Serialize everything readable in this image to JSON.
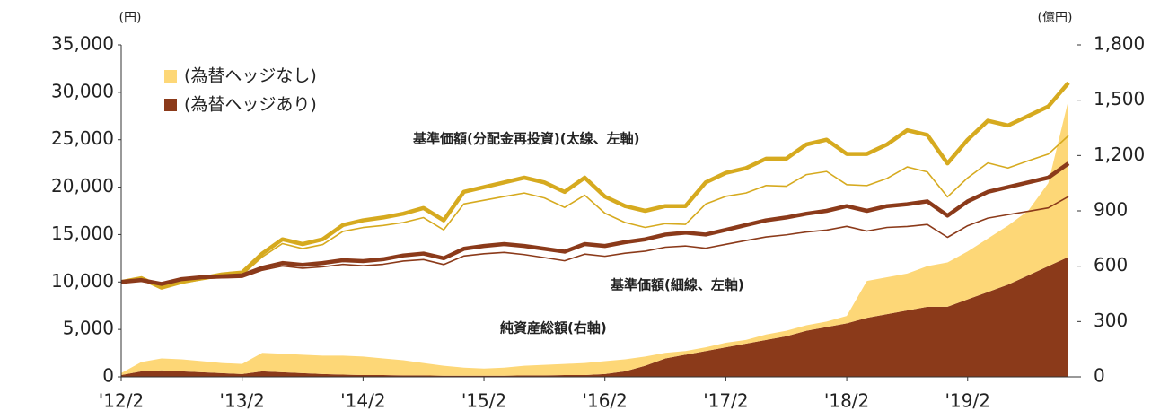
{
  "chart_data": {
    "type": "line-area",
    "y_unit": "(円)",
    "y2_unit": "(億円)",
    "annotations": [
      "基準価額(分配金再投資)(太線、左軸)",
      "基準価額(細線、左軸)",
      "純資産総額(右軸)"
    ],
    "x": [
      "2012-02",
      "2012-04",
      "2012-06",
      "2012-08",
      "2012-10",
      "2012-12",
      "2013-02",
      "2013-04",
      "2013-06",
      "2013-08",
      "2013-10",
      "2013-12",
      "2014-02",
      "2014-04",
      "2014-06",
      "2014-08",
      "2014-10",
      "2014-12",
      "2015-02",
      "2015-04",
      "2015-06",
      "2015-08",
      "2015-10",
      "2015-12",
      "2016-02",
      "2016-04",
      "2016-06",
      "2016-08",
      "2016-10",
      "2016-12",
      "2017-02",
      "2017-04",
      "2017-06",
      "2017-08",
      "2017-10",
      "2017-12",
      "2018-02",
      "2018-04",
      "2018-06",
      "2018-08",
      "2018-10",
      "2018-12",
      "2019-02",
      "2019-04",
      "2019-06",
      "2019-08",
      "2019-10",
      "2019-12"
    ],
    "xlim": [
      "2012-02",
      "2019-12"
    ],
    "xticks": [
      {
        "value": "2012-02",
        "label": "'12/2"
      },
      {
        "value": "2013-02",
        "label": "'13/2"
      },
      {
        "value": "2014-02",
        "label": "'14/2"
      },
      {
        "value": "2015-02",
        "label": "'15/2"
      },
      {
        "value": "2016-02",
        "label": "'16/2"
      },
      {
        "value": "2017-02",
        "label": "'17/2"
      },
      {
        "value": "2018-02",
        "label": "'18/2"
      },
      {
        "value": "2019-02",
        "label": "'19/2"
      }
    ],
    "ylim": [
      0,
      35000
    ],
    "yticks": [
      0,
      {
        "value": 5000,
        "label": "5,000"
      },
      {
        "value": 10000,
        "label": "10,000"
      },
      {
        "value": 15000,
        "label": "15,000"
      },
      {
        "value": 20000,
        "label": "20,000"
      },
      {
        "value": 25000,
        "label": "25,000"
      },
      {
        "value": 30000,
        "label": "30,000"
      },
      {
        "value": 35000,
        "label": "35,000"
      }
    ],
    "y2lim": [
      0,
      1800
    ],
    "y2ticks": [
      0,
      300,
      600,
      900,
      {
        "value": 1200,
        "label": "1,200"
      },
      {
        "value": 1500,
        "label": "1,500"
      },
      {
        "value": 1800,
        "label": "1,800"
      }
    ],
    "areas": [
      {
        "name": "(為替ヘッジあり)",
        "color": "#8b3a1a",
        "axis": "y2",
        "values": [
          10,
          30,
          35,
          30,
          25,
          20,
          15,
          30,
          25,
          20,
          15,
          12,
          10,
          10,
          8,
          8,
          6,
          6,
          6,
          6,
          8,
          8,
          10,
          10,
          15,
          30,
          60,
          100,
          120,
          140,
          160,
          180,
          200,
          220,
          250,
          270,
          290,
          320,
          340,
          360,
          380,
          380,
          420,
          460,
          500,
          550,
          600,
          650
        ]
      },
      {
        "name": "(為替ヘッジなし)",
        "color": "#fdd777",
        "axis": "y2",
        "values": [
          10,
          50,
          65,
          65,
          60,
          55,
          55,
          100,
          100,
          100,
          100,
          103,
          100,
          90,
          82,
          67,
          54,
          44,
          39,
          44,
          52,
          57,
          60,
          65,
          70,
          65,
          50,
          30,
          20,
          20,
          25,
          20,
          30,
          30,
          30,
          30,
          40,
          200,
          200,
          200,
          220,
          240,
          260,
          290,
          320,
          350,
          450,
          850
        ]
      }
    ],
    "series": [
      {
        "color": "#d6aa1f",
        "width": 1.6,
        "values": [
          10000,
          10360,
          9330,
          9890,
          10240,
          10590,
          10750,
          12650,
          14050,
          13520,
          13950,
          15330,
          15740,
          15960,
          16270,
          16790,
          15490,
          18230,
          18620,
          19010,
          19380,
          18860,
          17860,
          19150,
          17250,
          16270,
          15750,
          16150,
          16070,
          18220,
          19030,
          19380,
          20170,
          20100,
          21320,
          21650,
          20260,
          20160,
          20920,
          22130,
          21600,
          18970,
          20980,
          22550,
          22020,
          22770,
          23480,
          25420
        ]
      },
      {
        "color": "#8b3a1a",
        "width": 1.6,
        "values": [
          10000,
          10170,
          9730,
          10200,
          10360,
          10430,
          10490,
          11240,
          11690,
          11450,
          11600,
          11860,
          11710,
          11870,
          12210,
          12360,
          11840,
          12740,
          12980,
          13120,
          12890,
          12570,
          12240,
          12940,
          12710,
          13040,
          13250,
          13670,
          13800,
          13560,
          13970,
          14370,
          14750,
          14970,
          15270,
          15470,
          15860,
          15370,
          15750,
          15850,
          16060,
          14710,
          15930,
          16730,
          17100,
          17450,
          17810,
          19010
        ]
      },
      {
        "color": "#d6aa1f",
        "width": 4.5,
        "values": [
          10000,
          10400,
          9400,
          10000,
          10400,
          10800,
          11000,
          13000,
          14500,
          14000,
          14500,
          16000,
          16500,
          16800,
          17200,
          17800,
          16500,
          19500,
          20000,
          20500,
          21000,
          20500,
          19500,
          21000,
          19000,
          18000,
          17500,
          18000,
          18000,
          20500,
          21500,
          22000,
          23000,
          23000,
          24500,
          25000,
          23500,
          23500,
          24500,
          26000,
          25500,
          22500,
          25000,
          27000,
          26500,
          27500,
          28500,
          31000
        ]
      },
      {
        "color": "#8b3a1a",
        "width": 4.5,
        "values": [
          10000,
          10200,
          9800,
          10300,
          10500,
          10600,
          10700,
          11500,
          12000,
          11800,
          12000,
          12300,
          12200,
          12400,
          12800,
          13000,
          12500,
          13500,
          13800,
          14000,
          13800,
          13500,
          13200,
          14000,
          13800,
          14200,
          14500,
          15000,
          15200,
          15000,
          15500,
          16000,
          16500,
          16800,
          17200,
          17500,
          18000,
          17500,
          18000,
          18200,
          18500,
          17000,
          18500,
          19500,
          20000,
          20500,
          21000,
          22500
        ]
      }
    ]
  }
}
